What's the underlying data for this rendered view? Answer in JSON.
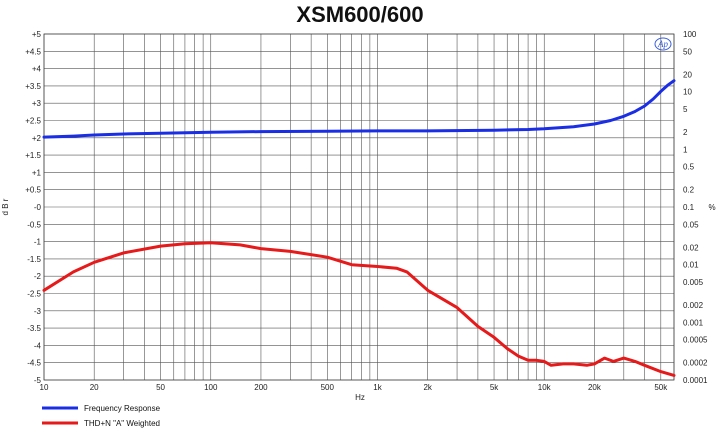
{
  "chart_data": {
    "type": "line",
    "title": "XSM600/600",
    "xlabel": "Hz",
    "ylabel_left": "d B r",
    "ylabel_right": "%",
    "x_scale": "log",
    "xlim": [
      10,
      60000
    ],
    "ylim_left": [
      -5,
      5
    ],
    "ylim_right": [
      0.0001,
      100
    ],
    "y_right_scale": "log",
    "grid": true,
    "legend_position": "bottom-left",
    "logo_text": "Ap",
    "x_ticks": [
      {
        "v": 10,
        "label": "10"
      },
      {
        "v": 20,
        "label": "20"
      },
      {
        "v": 50,
        "label": "50"
      },
      {
        "v": 100,
        "label": "100"
      },
      {
        "v": 200,
        "label": "200"
      },
      {
        "v": 500,
        "label": "500"
      },
      {
        "v": 1000,
        "label": "1k"
      },
      {
        "v": 2000,
        "label": "2k"
      },
      {
        "v": 5000,
        "label": "5k"
      },
      {
        "v": 10000,
        "label": "10k"
      },
      {
        "v": 20000,
        "label": "20k"
      },
      {
        "v": 50000,
        "label": "50k"
      }
    ],
    "y_left_ticks": [
      {
        "v": 5,
        "label": "+5"
      },
      {
        "v": 4.5,
        "label": "+4.5"
      },
      {
        "v": 4,
        "label": "+4"
      },
      {
        "v": 3.5,
        "label": "+3.5"
      },
      {
        "v": 3,
        "label": "+3"
      },
      {
        "v": 2.5,
        "label": "+2.5"
      },
      {
        "v": 2,
        "label": "+2"
      },
      {
        "v": 1.5,
        "label": "+1.5"
      },
      {
        "v": 1,
        "label": "+1"
      },
      {
        "v": 0.5,
        "label": "+0.5"
      },
      {
        "v": 0,
        "label": "-0"
      },
      {
        "v": -0.5,
        "label": "-0.5"
      },
      {
        "v": -1,
        "label": "-1"
      },
      {
        "v": -1.5,
        "label": "-1.5"
      },
      {
        "v": -2,
        "label": "-2"
      },
      {
        "v": -2.5,
        "label": "-2.5"
      },
      {
        "v": -3,
        "label": "-3"
      },
      {
        "v": -3.5,
        "label": "-3.5"
      },
      {
        "v": -4,
        "label": "-4"
      },
      {
        "v": -4.5,
        "label": "-4.5"
      },
      {
        "v": -5,
        "label": "-5"
      }
    ],
    "y_right_ticks": [
      {
        "v": 100,
        "label": "100"
      },
      {
        "v": 50,
        "label": "50"
      },
      {
        "v": 20,
        "label": "20"
      },
      {
        "v": 10,
        "label": "10"
      },
      {
        "v": 5,
        "label": "5"
      },
      {
        "v": 2,
        "label": "2"
      },
      {
        "v": 1,
        "label": "1"
      },
      {
        "v": 0.5,
        "label": "0.5"
      },
      {
        "v": 0.2,
        "label": "0.2"
      },
      {
        "v": 0.1,
        "label": "0.1"
      },
      {
        "v": 0.05,
        "label": "0.05"
      },
      {
        "v": 0.02,
        "label": "0.02"
      },
      {
        "v": 0.01,
        "label": "0.01"
      },
      {
        "v": 0.005,
        "label": "0.005"
      },
      {
        "v": 0.002,
        "label": "0.002"
      },
      {
        "v": 0.001,
        "label": "0.001"
      },
      {
        "v": 0.0005,
        "label": "0.0005"
      },
      {
        "v": 0.0002,
        "label": "0.0002"
      },
      {
        "v": 0.0001,
        "label": "0.0001"
      }
    ],
    "series": [
      {
        "name": "Frequency Response",
        "axis": "left",
        "color": "#1a2ee6",
        "points": [
          [
            10,
            2.02
          ],
          [
            15,
            2.05
          ],
          [
            20,
            2.08
          ],
          [
            30,
            2.11
          ],
          [
            50,
            2.13
          ],
          [
            100,
            2.16
          ],
          [
            200,
            2.18
          ],
          [
            500,
            2.19
          ],
          [
            1000,
            2.2
          ],
          [
            2000,
            2.2
          ],
          [
            5000,
            2.22
          ],
          [
            8000,
            2.24
          ],
          [
            10000,
            2.26
          ],
          [
            15000,
            2.32
          ],
          [
            20000,
            2.4
          ],
          [
            25000,
            2.5
          ],
          [
            30000,
            2.62
          ],
          [
            35000,
            2.76
          ],
          [
            40000,
            2.92
          ],
          [
            45000,
            3.12
          ],
          [
            50000,
            3.34
          ],
          [
            55000,
            3.52
          ],
          [
            60000,
            3.65
          ]
        ]
      },
      {
        "name": "THD+N \"A\" Weighted",
        "axis": "right",
        "color": "#e61a1a",
        "points": [
          [
            10,
            0.0036
          ],
          [
            15,
            0.0075
          ],
          [
            20,
            0.011
          ],
          [
            30,
            0.016
          ],
          [
            50,
            0.021
          ],
          [
            70,
            0.023
          ],
          [
            100,
            0.024
          ],
          [
            150,
            0.022
          ],
          [
            200,
            0.019
          ],
          [
            300,
            0.017
          ],
          [
            500,
            0.0135
          ],
          [
            700,
            0.01
          ],
          [
            1000,
            0.0093
          ],
          [
            1300,
            0.0087
          ],
          [
            1500,
            0.0075
          ],
          [
            2000,
            0.0036
          ],
          [
            3000,
            0.0018
          ],
          [
            4000,
            0.00085
          ],
          [
            5000,
            0.00055
          ],
          [
            6000,
            0.00035
          ],
          [
            7000,
            0.00026
          ],
          [
            8000,
            0.00022
          ],
          [
            9000,
            0.00022
          ],
          [
            10000,
            0.00021
          ],
          [
            11000,
            0.00018
          ],
          [
            13000,
            0.00019
          ],
          [
            15000,
            0.00019
          ],
          [
            18000,
            0.00018
          ],
          [
            20000,
            0.00019
          ],
          [
            23000,
            0.00024
          ],
          [
            26000,
            0.00021
          ],
          [
            30000,
            0.00024
          ],
          [
            35000,
            0.00021
          ],
          [
            40000,
            0.00018
          ],
          [
            50000,
            0.00014
          ],
          [
            60000,
            0.00012
          ]
        ]
      }
    ]
  }
}
